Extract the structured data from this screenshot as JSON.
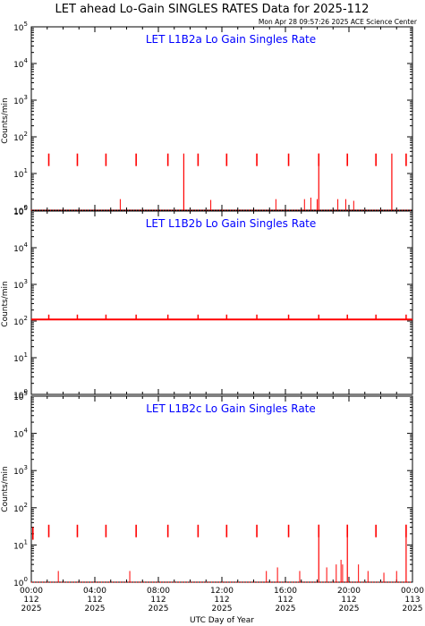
{
  "title": "LET ahead Lo-Gain SINGLES RATES Data for 2025-112",
  "timestamp": "Mon Apr 28 09:57:26 2025 ACE Science Center",
  "colors": {
    "series": "#ff0000",
    "panel_title": "#0000ff",
    "axis": "#000000"
  },
  "chart_data": {
    "type": "scatter",
    "xlabel": "UTC Day of Year",
    "ylabel": "Counts/min",
    "xlim_hours": [
      0,
      24
    ],
    "ylim": [
      1,
      100000
    ],
    "yscale": "log",
    "y_ticks": [
      {
        "base": "10",
        "exp": "0",
        "value": 1
      },
      {
        "base": "10",
        "exp": "1",
        "value": 10
      },
      {
        "base": "10",
        "exp": "2",
        "value": 100
      },
      {
        "base": "10",
        "exp": "3",
        "value": 1000
      },
      {
        "base": "10",
        "exp": "4",
        "value": 10000
      },
      {
        "base": "10",
        "exp": "5",
        "value": 100000
      }
    ],
    "x_ticks": [
      {
        "hour": 0,
        "time": "00:00",
        "doy": "112",
        "year": "2025"
      },
      {
        "hour": 4,
        "time": "04:00",
        "doy": "112",
        "year": "2025"
      },
      {
        "hour": 8,
        "time": "08:00",
        "doy": "112",
        "year": "2025"
      },
      {
        "hour": 12,
        "time": "12:00",
        "doy": "112",
        "year": "2025"
      },
      {
        "hour": 16,
        "time": "16:00",
        "doy": "112",
        "year": "2025"
      },
      {
        "hour": 20,
        "time": "20:00",
        "doy": "112",
        "year": "2025"
      },
      {
        "hour": 24,
        "time": "00:00",
        "doy": "113",
        "year": "2025"
      }
    ],
    "panels": [
      {
        "name": "LET L1B2a Lo Gain Singles Rate",
        "baseline": 1,
        "spike_hours": [
          1.1,
          2.9,
          4.7,
          6.6,
          8.6,
          10.5,
          12.3,
          14.2,
          16.2,
          18.1,
          19.9,
          21.7,
          23.6
        ],
        "spike_values": [
          35,
          35,
          35,
          35,
          35,
          35,
          35,
          35,
          35,
          35,
          35,
          35,
          35
        ],
        "dips_to_baseline_hours": [
          9.6,
          18.1,
          22.7
        ],
        "scatter_points": [
          [
            5.6,
            2
          ],
          [
            17.2,
            2
          ],
          [
            17.6,
            2.2
          ],
          [
            18.0,
            2
          ],
          [
            19.3,
            2
          ],
          [
            19.8,
            2
          ],
          [
            20.3,
            1.8
          ],
          [
            11.3,
            1.9
          ],
          [
            15.4,
            2.0
          ]
        ]
      },
      {
        "name": "LET L1B2b Lo Gain Singles Rate",
        "baseline": 110,
        "spike_hours": [
          1.1,
          2.9,
          4.7,
          6.6,
          8.6,
          10.5,
          12.3,
          14.2,
          16.2,
          18.1,
          19.9,
          21.7,
          23.6
        ],
        "spike_values": [
          150,
          150,
          150,
          150,
          150,
          150,
          150,
          150,
          150,
          150,
          150,
          150,
          150
        ],
        "dips_to_baseline_hours": [],
        "scatter_points": []
      },
      {
        "name": "LET L1B2c Lo Gain Singles Rate",
        "baseline": 1,
        "spike_hours": [
          0.1,
          1.1,
          2.9,
          4.7,
          6.6,
          8.6,
          10.5,
          12.3,
          14.2,
          16.2,
          18.1,
          19.9,
          21.7,
          23.6
        ],
        "spike_values": [
          30,
          35,
          35,
          35,
          35,
          35,
          35,
          35,
          35,
          35,
          35,
          35,
          35,
          35
        ],
        "dips_to_baseline_hours": [
          18.1,
          19.9,
          23.6
        ],
        "scatter_points": [
          [
            1.7,
            2
          ],
          [
            6.2,
            2
          ],
          [
            14.8,
            2
          ],
          [
            15.5,
            2.5
          ],
          [
            16.9,
            2
          ],
          [
            18.6,
            2.5
          ],
          [
            19.2,
            3
          ],
          [
            19.5,
            4
          ],
          [
            19.6,
            3
          ],
          [
            20.6,
            3
          ],
          [
            21.2,
            2
          ],
          [
            22.2,
            1.8
          ],
          [
            23.0,
            2
          ]
        ]
      }
    ]
  }
}
